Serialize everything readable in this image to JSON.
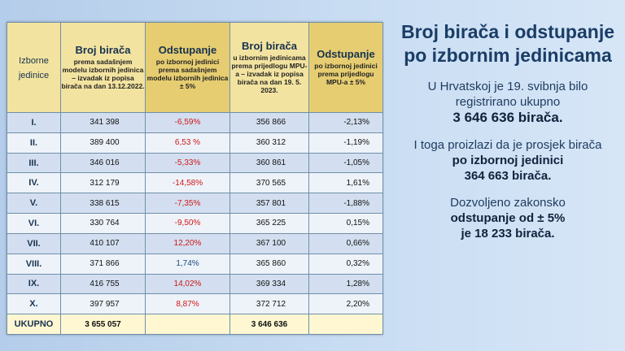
{
  "table": {
    "headers": {
      "col1": "Izborne jedinice",
      "col2_main": "Broj birača",
      "col2_sub": "prema sadašnjem modelu izbornih jedinica – izvadak iz popisa birača na dan 13.12.2022.",
      "col3_main": "Odstupanje",
      "col3_sub": "po izbornoj jedinici prema sadašnjem modelu izbornih jedinica ± 5%",
      "col4_main": "Broj birača",
      "col4_sub": "u izbornim jedinicama prema prijedlogu MPU-a – izvadak iz popisa birača na dan 19. 5. 2023.",
      "col5_main": "Odstupanje",
      "col5_sub": "po izbornoj jedinici prema prijedlogu MPU-a ± 5%"
    },
    "rows": [
      {
        "unit": "I.",
        "voters_current": "341 398",
        "dev_current": "-6,59%",
        "voters_proposal": "356 866",
        "dev_proposal": "-2,13%"
      },
      {
        "unit": "II.",
        "voters_current": "389 400",
        "dev_current": "6,53 %",
        "voters_proposal": "360 312",
        "dev_proposal": "-1,19%"
      },
      {
        "unit": "III.",
        "voters_current": "346 016",
        "dev_current": "-5,33%",
        "voters_proposal": "360 861",
        "dev_proposal": "-1,05%"
      },
      {
        "unit": "IV.",
        "voters_current": "312 179",
        "dev_current": "-14,58%",
        "voters_proposal": "370 565",
        "dev_proposal": "1,61%"
      },
      {
        "unit": "V.",
        "voters_current": "338 615",
        "dev_current": "-7,35%",
        "voters_proposal": "357 801",
        "dev_proposal": "-1,88%"
      },
      {
        "unit": "VI.",
        "voters_current": "330 764",
        "dev_current": "-9,50%",
        "voters_proposal": "365 225",
        "dev_proposal": "0,15%"
      },
      {
        "unit": "VII.",
        "voters_current": "410 107",
        "dev_current": "12,20%",
        "voters_proposal": "367 100",
        "dev_proposal": "0,66%"
      },
      {
        "unit": "VIII.",
        "voters_current": "371 866",
        "dev_current": "1,74%",
        "voters_proposal": "365 860",
        "dev_proposal": "0,32%"
      },
      {
        "unit": "IX.",
        "voters_current": "416 755",
        "dev_current": "14,02%",
        "voters_proposal": "369 334",
        "dev_proposal": "1,28%"
      },
      {
        "unit": "X.",
        "voters_current": "397 957",
        "dev_current": "8,87%",
        "voters_proposal": "372 712",
        "dev_proposal": "2,20%"
      }
    ],
    "total": {
      "label": "UKUPNO",
      "voters_current": "3 655 057",
      "voters_proposal": "3 646 636"
    }
  },
  "side": {
    "title": "Broj birača i odstupanje po izbornim jedinicama",
    "p1_text": "U Hrvatskoj je 19. svibnja bilo registrirano ukupno",
    "p1_bold": "3 646 636 birača.",
    "p2_text": "I toga proizlazi da je prosjek birača",
    "p2_bold1": "po izbornoj jedinici",
    "p2_bold2": "364 663 birača.",
    "p3_text": "Dozvoljeno zakonsko",
    "p3_bold": "odstupanje od ± 5%",
    "p3_tail": "je 18 233 birača."
  }
}
